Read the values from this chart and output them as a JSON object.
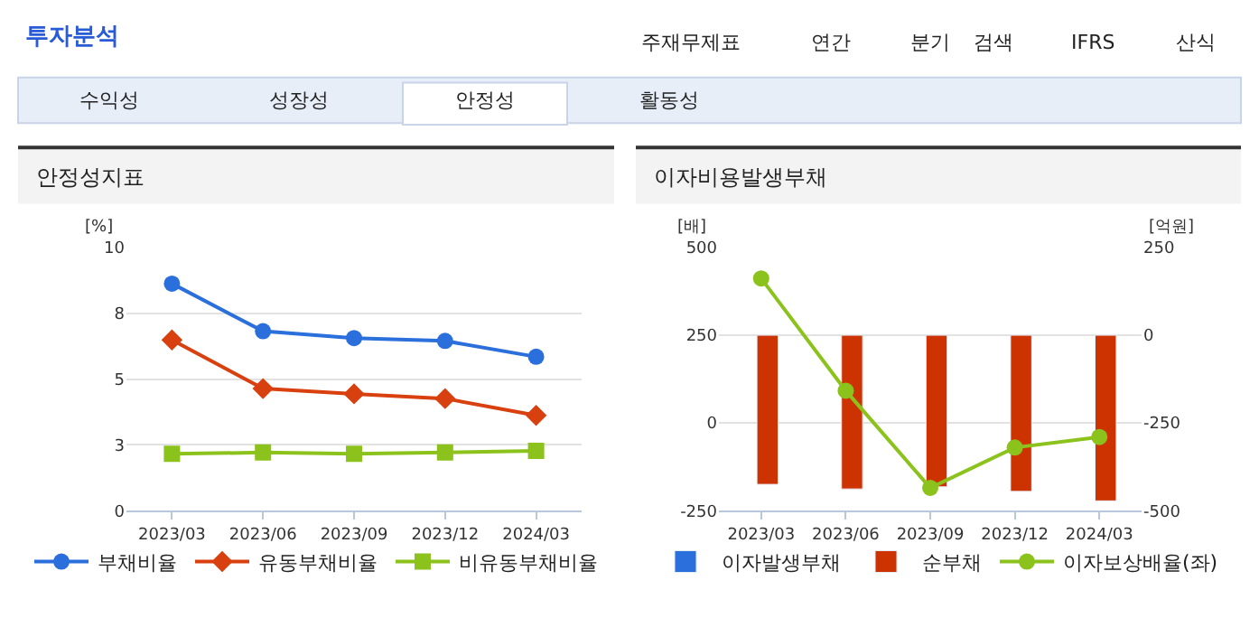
{
  "chart_data": [
    {
      "type": "other",
      "title": "투자분석",
      "annotations": [
        "주재무제표",
        "연간",
        "분기",
        "검색",
        "IFRS",
        "산식",
        "수익성",
        "성장성",
        "안정성",
        "활동성"
      ]
    },
    {
      "type": "line",
      "title": "안정성지표",
      "ylabel": "[%]",
      "categories": [
        "2023/03",
        "2023/06",
        "2023/09",
        "2023/12",
        "2024/03"
      ],
      "series": [
        {
          "name": "부채비율",
          "color": "#2a6fdb",
          "marker": "circle",
          "values": [
            8.63,
            6.82,
            6.56,
            6.45,
            5.85
          ]
        },
        {
          "name": "유동부채비율",
          "color": "#d9400f",
          "marker": "diamond",
          "values": [
            6.49,
            4.64,
            4.44,
            4.26,
            3.62
          ]
        },
        {
          "name": "비유동부채비율",
          "color": "#8cc21c",
          "marker": "square",
          "values": [
            2.16,
            2.21,
            2.16,
            2.21,
            2.27
          ]
        }
      ],
      "ylim": [
        0,
        10
      ],
      "yticks": [
        0,
        {
          "value": 2.5,
          "label": "3"
        },
        5,
        {
          "value": 7.5,
          "label": "8"
        },
        10
      ],
      "grid": "y",
      "legend": "bottom"
    },
    {
      "type": "bar",
      "title": "이자비용발생부채",
      "ylabel": "[배]",
      "y2label": "[억원]",
      "categories": [
        "2023/03",
        "2023/06",
        "2023/09",
        "2023/12",
        "2024/03"
      ],
      "series": [
        {
          "name": "이자발생부채",
          "color": "#2a6fdb",
          "axis": "y2",
          "values": [
            null,
            null,
            null,
            null,
            null
          ]
        },
        {
          "name": "순부채",
          "color": "#cc3300",
          "axis": "y2",
          "values": [
            -425,
            -438,
            -432,
            -445,
            -472
          ]
        },
        {
          "name": "이자보상배율(좌)",
          "type": "line",
          "marker": "circle",
          "color": "#8cc21c",
          "values": [
            412,
            92,
            -185,
            -70,
            -40
          ]
        }
      ],
      "ylim": [
        -250,
        500
      ],
      "yticks": [
        -250,
        0,
        250,
        500
      ],
      "y2lim": [
        -500,
        250
      ],
      "y2ticks": [
        -500,
        -250,
        0,
        250
      ],
      "grid": "y",
      "legend": "bottom"
    }
  ]
}
